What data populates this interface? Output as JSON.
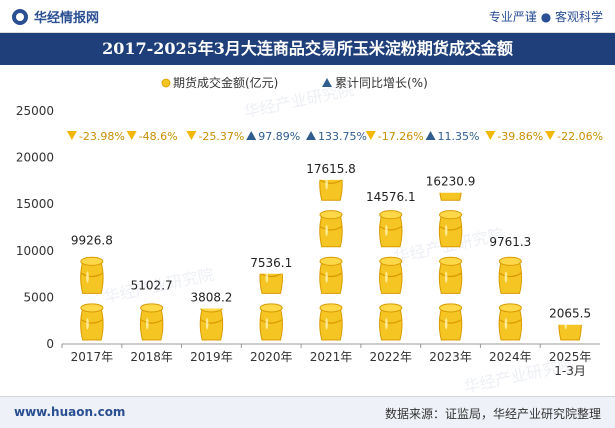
{
  "header": {
    "brand": "华经情报网",
    "slogan": "专业严谨 ● 客观科学",
    "title": "2017-2025年3月大连商品交易所玉米淀粉期货成交金额"
  },
  "footer": {
    "url": "www.huaon.com",
    "source": "数据来源：证监局，华经产业研究院整理"
  },
  "watermark": "华经产业研究院",
  "colors": {
    "title_bg": "#1f3f7a",
    "pot": "#f5c623",
    "pot_dark": "#d99a00",
    "growth_up": "#2f5d8e",
    "growth_down": "#f2b705"
  },
  "chart_data": {
    "type": "bar",
    "title": "2017-2025年3月大连商品交易所玉米淀粉期货成交金额",
    "categories": [
      "2017年",
      "2018年",
      "2019年",
      "2020年",
      "2021年",
      "2022年",
      "2023年",
      "2024年",
      "2025年\n1-3月"
    ],
    "ylim": [
      0,
      25000
    ],
    "yticks": [
      0,
      5000,
      10000,
      15000,
      20000,
      25000
    ],
    "legend_position": "top-center",
    "series": [
      {
        "name": "期货成交金额(亿元)",
        "values": [
          9926.8,
          5102.7,
          3808.2,
          7536.1,
          17615.8,
          14576.1,
          16230.9,
          9761.3,
          2065.5
        ],
        "labels": [
          "9926.8",
          "5102.7",
          "3808.2",
          "7536.1",
          "17615.8",
          "14576.1",
          "16230.9",
          "9761.3",
          "2065.5"
        ]
      },
      {
        "name": "累计同比增长(%)",
        "values": [
          -23.98,
          -48.6,
          -25.37,
          97.89,
          133.75,
          -17.26,
          11.35,
          -39.86,
          -22.06
        ],
        "labels": [
          "-23.98%",
          "-48.6%",
          "-25.37%",
          "97.89%",
          "133.75%",
          "-17.26%",
          "11.35%",
          "-39.86%",
          "-22.06%"
        ]
      }
    ]
  }
}
